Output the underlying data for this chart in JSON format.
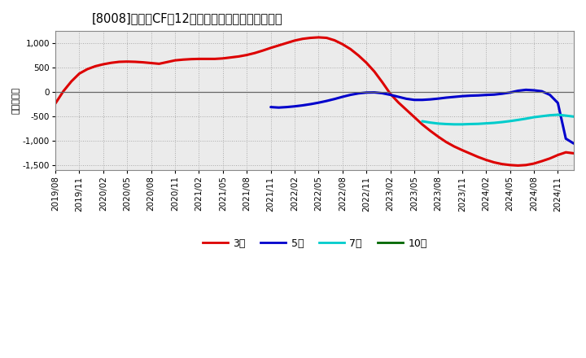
{
  "title": "[8008]　投賄CFの12か月移動合計の平均値の推移",
  "ylabel": "（百万円）",
  "background_color": "#ffffff",
  "grid_color": "#aaaaaa",
  "plot_bg_color": "#ebebeb",
  "ylim": [
    -1600,
    1250
  ],
  "yticks": [
    -1500,
    -1000,
    -500,
    0,
    500,
    1000
  ],
  "series": {
    "3年": {
      "color": "#dd0000",
      "x": [
        0,
        1,
        2,
        3,
        4,
        5,
        6,
        7,
        8,
        9,
        10,
        11,
        12,
        13,
        14,
        15,
        16,
        17,
        18,
        19,
        20,
        21,
        22,
        23,
        24,
        25,
        26,
        27,
        28,
        29,
        30,
        31,
        32,
        33,
        34,
        35,
        36,
        37,
        38,
        39,
        40,
        41,
        42,
        43,
        44,
        45,
        46,
        47,
        48,
        49,
        50,
        51,
        52,
        53,
        54,
        55,
        56,
        57,
        58,
        59,
        60,
        61,
        62,
        63,
        64,
        65
      ],
      "y": [
        -230,
        20,
        220,
        380,
        470,
        530,
        570,
        600,
        620,
        625,
        620,
        610,
        595,
        580,
        615,
        650,
        665,
        675,
        680,
        680,
        680,
        690,
        710,
        730,
        760,
        800,
        850,
        905,
        955,
        1005,
        1055,
        1090,
        1110,
        1120,
        1110,
        1060,
        980,
        880,
        750,
        600,
        420,
        200,
        -35,
        -210,
        -360,
        -510,
        -660,
        -790,
        -910,
        -1020,
        -1110,
        -1185,
        -1255,
        -1325,
        -1385,
        -1435,
        -1470,
        -1490,
        -1500,
        -1490,
        -1460,
        -1410,
        -1355,
        -1285,
        -1230,
        -1250
      ]
    },
    "5年": {
      "color": "#0000cc",
      "x": [
        27,
        28,
        29,
        30,
        31,
        32,
        33,
        34,
        35,
        36,
        37,
        38,
        39,
        40,
        41,
        42,
        43,
        44,
        45,
        46,
        47,
        48,
        49,
        50,
        51,
        52,
        53,
        54,
        55,
        56,
        57,
        58,
        59,
        60,
        61,
        62,
        63,
        64,
        65
      ],
      "y": [
        -305,
        -315,
        -305,
        -290,
        -270,
        -245,
        -215,
        -180,
        -140,
        -95,
        -55,
        -25,
        -8,
        -5,
        -22,
        -55,
        -95,
        -135,
        -158,
        -158,
        -148,
        -132,
        -112,
        -97,
        -82,
        -72,
        -67,
        -57,
        -50,
        -32,
        -8,
        28,
        48,
        38,
        18,
        -55,
        -220,
        -950,
        -1050
      ]
    },
    "7年": {
      "color": "#00cccc",
      "x": [
        46,
        47,
        48,
        49,
        50,
        51,
        52,
        53,
        54,
        55,
        56,
        57,
        58,
        59,
        60,
        61,
        62,
        63,
        64,
        65
      ],
      "y": [
        -595,
        -622,
        -642,
        -652,
        -658,
        -658,
        -652,
        -648,
        -638,
        -628,
        -612,
        -592,
        -568,
        -542,
        -512,
        -492,
        -472,
        -462,
        -480,
        -500
      ]
    },
    "10年": {
      "color": "#006600",
      "x": [],
      "y": []
    }
  },
  "xtick_labels": [
    "2019/08",
    "2019/11",
    "2020/02",
    "2020/05",
    "2020/08",
    "2020/11",
    "2021/02",
    "2021/05",
    "2021/08",
    "2021/11",
    "2022/02",
    "2022/05",
    "2022/08",
    "2022/11",
    "2023/02",
    "2023/05",
    "2023/08",
    "2023/11",
    "2024/02",
    "2024/05",
    "2024/08",
    "2024/11"
  ],
  "xtick_positions": [
    0,
    3,
    6,
    9,
    12,
    15,
    18,
    21,
    24,
    27,
    30,
    33,
    36,
    39,
    42,
    45,
    48,
    51,
    54,
    57,
    60,
    63
  ],
  "legend": [
    {
      "label": "3年",
      "color": "#dd0000"
    },
    {
      "label": "5年",
      "color": "#0000cc"
    },
    {
      "label": "7年",
      "color": "#00cccc"
    },
    {
      "label": "10年",
      "color": "#006600"
    }
  ]
}
